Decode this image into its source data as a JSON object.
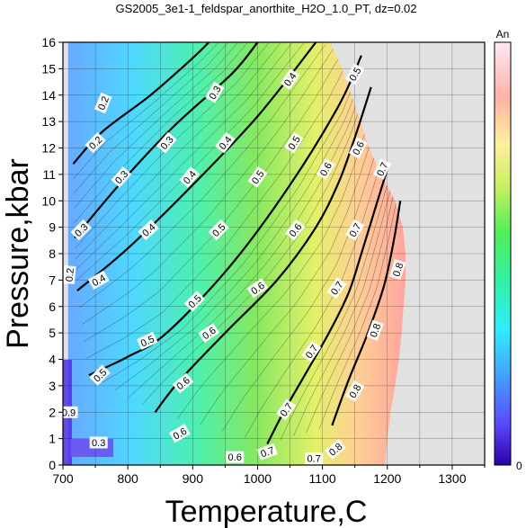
{
  "chart_data": {
    "type": "heatmap",
    "title": "GS2005_3e1-1_feldspar_anorthite_H2O_1.0_PT, dz=0.02",
    "xlabel": "Temperature,C",
    "ylabel": "Pressure,kbar",
    "xlim": [
      700,
      1350
    ],
    "ylim": [
      0,
      16
    ],
    "xticks": [
      "700",
      "800",
      "900",
      "1000",
      "1100",
      "1200",
      "1300"
    ],
    "yticks": [
      "0",
      "1",
      "2",
      "3",
      "4",
      "5",
      "6",
      "7",
      "8",
      "9",
      "10",
      "11",
      "12",
      "13",
      "14",
      "15",
      "16"
    ],
    "grid": true,
    "colorbar": {
      "label": "An",
      "min_label": "0",
      "range": [
        0,
        1
      ]
    },
    "region": {
      "left": [
        [
          708,
          0
        ],
        [
          708,
          16
        ]
      ],
      "right": [
        [
          1196,
          0
        ],
        [
          1200,
          1
        ],
        [
          1205,
          2
        ],
        [
          1212,
          3
        ],
        [
          1218,
          4
        ],
        [
          1222,
          5
        ],
        [
          1225,
          6
        ],
        [
          1228,
          7
        ],
        [
          1228,
          8
        ],
        [
          1224,
          9
        ],
        [
          1212,
          10
        ],
        [
          1190,
          11
        ],
        [
          1172,
          12
        ],
        [
          1158,
          13
        ],
        [
          1145,
          14
        ],
        [
          1130,
          15
        ],
        [
          1112,
          16
        ]
      ]
    },
    "contours": [
      {
        "level": "0.2",
        "points": [
          [
            716,
            11.4
          ],
          [
            760,
            12.6
          ],
          [
            835,
            14.0
          ],
          [
            900,
            15.4
          ],
          [
            925,
            16
          ]
        ]
      },
      {
        "level": "0.3",
        "points": [
          [
            718,
            8.6
          ],
          [
            790,
            10.7
          ],
          [
            870,
            12.8
          ],
          [
            960,
            14.8
          ],
          [
            1000,
            16
          ]
        ]
      },
      {
        "level": "0.4",
        "points": [
          [
            722,
            6.6
          ],
          [
            800,
            8.2
          ],
          [
            900,
            10.6
          ],
          [
            1000,
            13.2
          ],
          [
            1090,
            16
          ]
        ]
      },
      {
        "level": "0.5",
        "points": [
          [
            740,
            3.4
          ],
          [
            800,
            4.1
          ],
          [
            860,
            5.0
          ],
          [
            960,
            7.6
          ],
          [
            1050,
            10.6
          ],
          [
            1125,
            13.6
          ],
          [
            1160,
            15.5
          ]
        ]
      },
      {
        "level": "0.6",
        "points": [
          [
            842,
            2.0
          ],
          [
            880,
            3.2
          ],
          [
            950,
            5.0
          ],
          [
            1030,
            7.0
          ],
          [
            1090,
            9.0
          ],
          [
            1125,
            10.7
          ],
          [
            1150,
            12.4
          ],
          [
            1175,
            14.3
          ]
        ]
      },
      {
        "level": "0.7",
        "points": [
          [
            1015,
            0.8
          ],
          [
            1040,
            2.0
          ],
          [
            1075,
            3.5
          ],
          [
            1110,
            5.0
          ],
          [
            1140,
            6.5
          ],
          [
            1160,
            8.0
          ],
          [
            1180,
            9.6
          ],
          [
            1200,
            11.2
          ]
        ]
      },
      {
        "level": "0.8",
        "points": [
          [
            1115,
            1.5
          ],
          [
            1140,
            3.2
          ],
          [
            1170,
            5.0
          ],
          [
            1195,
            6.8
          ],
          [
            1210,
            8.5
          ],
          [
            1220,
            10.0
          ]
        ]
      }
    ],
    "labels": [
      {
        "text": "0.2",
        "at": [
          762,
          13.7
        ],
        "angle": -68
      },
      {
        "text": "0.3",
        "at": [
          934,
          14.1
        ],
        "angle": -60
      },
      {
        "text": "0.4",
        "at": [
          1050,
          14.6
        ],
        "angle": -55
      },
      {
        "text": "0.5",
        "at": [
          1150,
          14.8
        ],
        "angle": -60
      },
      {
        "text": "0.2",
        "at": [
          750,
          12.2
        ],
        "angle": -45
      },
      {
        "text": "0.3",
        "at": [
          860,
          12.2
        ],
        "angle": -50
      },
      {
        "text": "0.4",
        "at": [
          950,
          12.2
        ],
        "angle": -52
      },
      {
        "text": "0.5",
        "at": [
          1056,
          12.2
        ],
        "angle": -58
      },
      {
        "text": "0.6",
        "at": [
          1155,
          12.0
        ],
        "angle": -62
      },
      {
        "text": "0.3",
        "at": [
          790,
          10.9
        ],
        "angle": -48
      },
      {
        "text": "0.4",
        "at": [
          895,
          10.9
        ],
        "angle": -50
      },
      {
        "text": "0.5",
        "at": [
          1000,
          10.9
        ],
        "angle": -55
      },
      {
        "text": "0.6",
        "at": [
          1105,
          11.2
        ],
        "angle": -60
      },
      {
        "text": "0.7",
        "at": [
          1192,
          11.2
        ],
        "angle": -65
      },
      {
        "text": "0.3",
        "at": [
          728,
          8.9
        ],
        "angle": -45
      },
      {
        "text": "0.4",
        "at": [
          832,
          8.9
        ],
        "angle": -42
      },
      {
        "text": "0.5",
        "at": [
          940,
          8.9
        ],
        "angle": -45
      },
      {
        "text": "0.6",
        "at": [
          1058,
          8.9
        ],
        "angle": -52
      },
      {
        "text": "0.7",
        "at": [
          1150,
          8.9
        ],
        "angle": -60
      },
      {
        "text": "0.4",
        "at": [
          755,
          7.0
        ],
        "angle": -30
      },
      {
        "text": "0.6",
        "at": [
          1000,
          6.7
        ],
        "angle": -35
      },
      {
        "text": "0.7",
        "at": [
          1122,
          6.7
        ],
        "angle": -55
      },
      {
        "text": "0.8",
        "at": [
          1216,
          7.4
        ],
        "angle": -72
      },
      {
        "text": "0.2",
        "at": [
          710,
          7.2
        ],
        "angle": -85
      },
      {
        "text": "0.5",
        "at": [
          903,
          6.2
        ],
        "angle": -45
      },
      {
        "text": "0.6",
        "at": [
          925,
          5.0
        ],
        "angle": -35
      },
      {
        "text": "0.7",
        "at": [
          1083,
          4.3
        ],
        "angle": -55
      },
      {
        "text": "0.8",
        "at": [
          1181,
          5.1
        ],
        "angle": -70
      },
      {
        "text": "0.5",
        "at": [
          830,
          4.7
        ],
        "angle": -25
      },
      {
        "text": "0.5",
        "at": [
          757,
          3.4
        ],
        "angle": -45
      },
      {
        "text": "0.6",
        "at": [
          885,
          3.1
        ],
        "angle": -40
      },
      {
        "text": "0.7",
        "at": [
          1044,
          2.1
        ],
        "angle": -55
      },
      {
        "text": "0.8",
        "at": [
          1150,
          2.8
        ],
        "angle": -60
      },
      {
        "text": "0.9",
        "at": [
          709,
          2.0
        ],
        "angle": 0
      },
      {
        "text": "0.6",
        "at": [
          880,
          1.2
        ],
        "angle": -30
      },
      {
        "text": "0.7",
        "at": [
          1015,
          0.5
        ],
        "angle": -20
      },
      {
        "text": "0.8",
        "at": [
          1120,
          0.6
        ],
        "angle": -40
      },
      {
        "text": "0.3",
        "at": [
          755,
          0.85
        ],
        "angle": 0
      },
      {
        "text": "0.6",
        "at": [
          965,
          0.3
        ],
        "angle": 0
      },
      {
        "text": "0.7",
        "at": [
          1087,
          0.25
        ],
        "angle": 0
      }
    ]
  }
}
